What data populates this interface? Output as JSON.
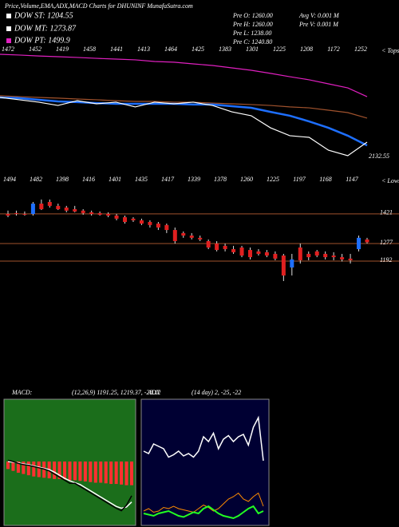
{
  "header": {
    "title": "Price,Volume,EMA,ADX,MACD Charts for DHUNINF MunafaSutra.com",
    "dow_st": "DOW ST: 1204.55",
    "dow_mt": "DOW MT: 1273.87",
    "dow_pt": "DOW PT: 1499.9",
    "pre_o": "Pre  O: 1260.00",
    "pre_h": "Pre  H: 1260.00",
    "pre_l": "Pre  L: 1238.00",
    "pre_c": "Pre  C: 1240.80",
    "avg_v": "Avg V: 0.001 M",
    "pre_v": "Pre  V: 0.001 M"
  },
  "chart_data": [
    {
      "type": "line",
      "ylim": [
        1150,
        1760
      ],
      "right_label": "< Tops",
      "annotation": "2132.55",
      "top_labels": [
        "1472",
        "1452",
        "1419",
        "1458",
        "1441",
        "1413",
        "1464",
        "1425",
        "1383",
        "1301",
        "1225",
        "1208",
        "1172",
        "1252"
      ],
      "series": [
        {
          "color": "#e020c0",
          "values": [
            1725,
            1721,
            1716,
            1712,
            1708,
            1703,
            1699,
            1695,
            1686,
            1682,
            1673,
            1664,
            1651,
            1638,
            1621,
            1603,
            1586,
            1564,
            1542,
            1494
          ]
        },
        {
          "color": "#a0522d",
          "values": [
            1499,
            1494,
            1490,
            1486,
            1481,
            1477,
            1472,
            1468,
            1468,
            1464,
            1464,
            1459,
            1455,
            1451,
            1446,
            1438,
            1433,
            1420,
            1407,
            1377
          ]
        },
        {
          "color": "#1e6fff",
          "values": [
            1490,
            1486,
            1477,
            1468,
            1464,
            1459,
            1455,
            1455,
            1455,
            1455,
            1451,
            1451,
            1442,
            1433,
            1411,
            1390,
            1359,
            1324,
            1281,
            1228
          ]
        },
        {
          "color": "#ffffff",
          "values": [
            1490,
            1477,
            1464,
            1446,
            1472,
            1455,
            1464,
            1438,
            1464,
            1455,
            1464,
            1446,
            1411,
            1390,
            1324,
            1281,
            1272,
            1202,
            1172,
            1246
          ]
        }
      ]
    },
    {
      "type": "candlestick",
      "ylim": [
        1064,
        1568
      ],
      "right_label": "< Lows",
      "hlines": [
        1421,
        1277,
        1192
      ],
      "top_labels": [
        "1494",
        "1482",
        "1398",
        "1416",
        "1401",
        "1435",
        "1417",
        "1339",
        "1378",
        "1260",
        "1225",
        "1197",
        "1168",
        "1147"
      ],
      "up_color": "#1e6fff",
      "down_color": "#e02020",
      "open": [
        1421,
        1425,
        1421,
        1421,
        1471,
        1479,
        1460,
        1452,
        1444,
        1437,
        1429,
        1425,
        1421,
        1413,
        1405,
        1398,
        1390,
        1382,
        1374,
        1367,
        1343,
        1328,
        1316,
        1305,
        1289,
        1277,
        1266,
        1250,
        1258,
        1246,
        1239,
        1235,
        1227,
        1219,
        1161,
        1258,
        1227,
        1239,
        1227,
        1219,
        1211,
        1204,
        1250,
        1297
      ],
      "high": [
        1437,
        1437,
        1433,
        1479,
        1491,
        1491,
        1471,
        1460,
        1460,
        1444,
        1437,
        1433,
        1429,
        1421,
        1413,
        1405,
        1398,
        1390,
        1382,
        1374,
        1355,
        1336,
        1328,
        1316,
        1297,
        1289,
        1277,
        1266,
        1266,
        1258,
        1250,
        1246,
        1239,
        1227,
        1227,
        1277,
        1239,
        1246,
        1239,
        1235,
        1227,
        1227,
        1316,
        1305
      ],
      "low": [
        1405,
        1413,
        1413,
        1413,
        1440,
        1452,
        1440,
        1429,
        1429,
        1417,
        1413,
        1413,
        1405,
        1390,
        1374,
        1382,
        1367,
        1355,
        1343,
        1328,
        1277,
        1305,
        1297,
        1289,
        1250,
        1239,
        1239,
        1227,
        1211,
        1200,
        1219,
        1211,
        1196,
        1095,
        1122,
        1180,
        1196,
        1211,
        1200,
        1196,
        1190,
        1180,
        1239,
        1277
      ],
      "close": [
        1413,
        1421,
        1417,
        1471,
        1444,
        1460,
        1444,
        1437,
        1433,
        1425,
        1421,
        1417,
        1413,
        1398,
        1382,
        1390,
        1374,
        1367,
        1355,
        1343,
        1289,
        1316,
        1305,
        1297,
        1258,
        1246,
        1250,
        1235,
        1219,
        1211,
        1227,
        1219,
        1204,
        1122,
        1200,
        1196,
        1211,
        1219,
        1211,
        1211,
        1200,
        1196,
        1305,
        1283
      ]
    },
    {
      "type": "macd",
      "label": "MACD:",
      "params": "(12,26,9) 1191.25, 1219.37, -28.12",
      "ylim": [
        -100,
        100
      ],
      "hist": [
        -12,
        -15,
        -18,
        -20,
        -22,
        -24,
        -25,
        -26,
        -27,
        -28,
        -28,
        -29,
        -30,
        -30,
        -31,
        -32,
        -33,
        -34,
        -34,
        -35,
        -36,
        -36,
        -37,
        -38,
        -38
      ],
      "macd": [
        2,
        0,
        -3,
        -5,
        -6,
        -8,
        -10,
        -12,
        -15,
        -20,
        -25,
        -30,
        -35,
        -35,
        -40,
        -45,
        -50,
        -55,
        -60,
        -65,
        -70,
        -75,
        -79,
        -70,
        -55
      ],
      "signal": [
        0,
        -1,
        -2,
        -4,
        -5,
        -7,
        -9,
        -11,
        -13,
        -17,
        -22,
        -27,
        -31,
        -34,
        -37,
        -42,
        -47,
        -52,
        -57,
        -62,
        -67,
        -72,
        -75,
        -73,
        -65
      ]
    },
    {
      "type": "adx",
      "label": "ADX",
      "params": "(14 day) 2, -25, -22",
      "ylim": [
        0,
        100
      ],
      "adx": [
        60,
        58,
        66,
        64,
        62,
        55,
        57,
        60,
        56,
        58,
        55,
        60,
        72,
        68,
        75,
        62,
        70,
        73,
        68,
        72,
        74,
        65,
        80,
        88,
        52
      ],
      "plus_di": [
        8,
        7,
        6,
        8,
        9,
        10,
        8,
        6,
        5,
        7,
        9,
        8,
        12,
        14,
        11,
        8,
        6,
        5,
        4,
        6,
        9,
        12,
        14,
        8,
        10
      ],
      "minus_di": [
        10,
        12,
        9,
        10,
        13,
        12,
        14,
        12,
        11,
        10,
        9,
        12,
        15,
        13,
        10,
        12,
        16,
        20,
        22,
        25,
        20,
        18,
        22,
        25,
        14
      ]
    }
  ]
}
